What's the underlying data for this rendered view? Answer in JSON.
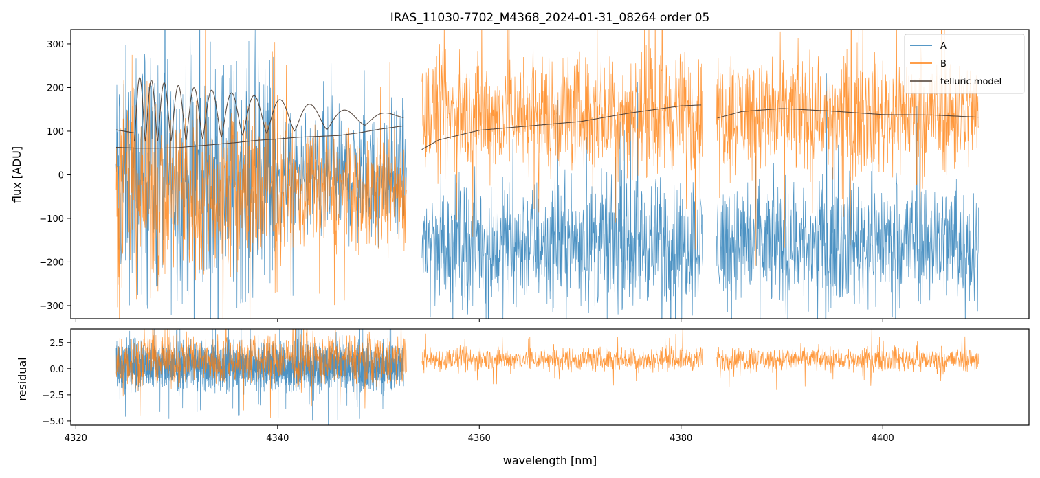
{
  "chart_data": [
    {
      "type": "line",
      "panel": "top",
      "title": "IRAS_11030-7702_M4368_2024-01-31_08264  order 05",
      "xlabel": "",
      "ylabel": "flux [ADU]",
      "xlim": [
        4319.5,
        4414.5
      ],
      "ylim": [
        -330,
        333
      ],
      "x_ticks": [
        4320,
        4340,
        4360,
        4380,
        4400
      ],
      "y_ticks": [
        -300,
        -200,
        -100,
        0,
        100,
        200,
        300
      ],
      "legend_position": "top-right",
      "series": [
        {
          "name": "A",
          "color": "#1f77b4",
          "x_range": [
            4324,
            4409.5
          ],
          "gaps": [
            [
              4352.8,
              4354.3
            ],
            [
              4382.2,
              4383.5
            ]
          ],
          "center_start": 0,
          "center_end": -155,
          "amplitude": 100
        },
        {
          "name": "B",
          "color": "#ff7f0e",
          "x_range": [
            4324,
            4409.5
          ],
          "gaps": [
            [
              4352.8,
              4354.3
            ],
            [
              4382.2,
              4383.5
            ]
          ],
          "center_start": -40,
          "center_end": 140,
          "amplitude": 95
        },
        {
          "name": "telluric model",
          "color": "#4a3b31",
          "segments": [
            {
              "x": [
                4324.0,
                4326.0,
                4328.0,
                4330.0,
                4332.0,
                4334.0,
                4336.0,
                4338.0,
                4340.0,
                4342.0,
                4344.0,
                4346.0,
                4348.0,
                4350.0,
                4352.5
              ],
              "y": [
                63,
                61,
                61,
                62,
                66,
                70,
                74,
                79,
                82,
                86,
                88,
                90,
                96,
                104,
                112
              ],
              "ripple": true
            },
            {
              "x": [
                4324.0,
                4325.8
              ],
              "y": [
                103,
                96
              ]
            },
            {
              "x": [
                4354.3,
                4356.0,
                4360.0,
                4365.0,
                4370.0,
                4375.0,
                4380.0,
                4382.0
              ],
              "y": [
                58,
                80,
                102,
                112,
                122,
                142,
                158,
                160
              ]
            },
            {
              "x": [
                4383.6,
                4386.0,
                4390.0,
                4395.0,
                4400.0,
                4405.0,
                4409.5
              ],
              "y": [
                130,
                145,
                152,
                146,
                138,
                137,
                132
              ]
            }
          ]
        }
      ]
    },
    {
      "type": "line",
      "panel": "bottom",
      "xlabel": "wavelength [nm]",
      "ylabel": "residual",
      "xlim": [
        4319.5,
        4414.5
      ],
      "ylim": [
        -5.4,
        3.8
      ],
      "x_ticks": [
        4320,
        4340,
        4360,
        4380,
        4400
      ],
      "y_ticks": [
        -5.0,
        -2.5,
        0.0,
        2.5
      ],
      "reference_line": 1.0,
      "series": [
        {
          "name": "A",
          "color": "#1f77b4",
          "x_range": [
            4324,
            4352.5
          ],
          "center": 0.3,
          "amplitude": 1.6
        },
        {
          "name": "B",
          "color": "#ff7f0e",
          "x_range": [
            4324,
            4409.5
          ],
          "gaps": [
            [
              4352.8,
              4354.3
            ],
            [
              4382.2,
              4383.5
            ]
          ],
          "center": 0.9,
          "amplitude": 0.8
        }
      ]
    }
  ]
}
